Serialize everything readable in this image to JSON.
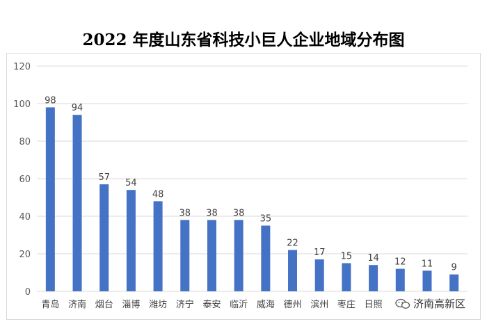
{
  "chart_data": {
    "type": "bar",
    "title": "2022 年度山东省科技小巨人企业地域分布图",
    "categories": [
      "青岛",
      "济南",
      "烟台",
      "淄博",
      "潍坊",
      "济宁",
      "泰安",
      "临沂",
      "威海",
      "德州",
      "滨州",
      "枣庄",
      "日照",
      "",
      "",
      ""
    ],
    "values": [
      98,
      94,
      57,
      54,
      48,
      38,
      38,
      38,
      35,
      22,
      17,
      15,
      14,
      12,
      11,
      9
    ],
    "ylim": [
      0,
      120
    ],
    "yticks": [
      0,
      20,
      40,
      60,
      80,
      100,
      120
    ],
    "grid": true,
    "legend": "none",
    "bar_color": "#4472c4",
    "grid_color": "#d9d9d9"
  },
  "watermark": {
    "text": "济南高新区",
    "icon": "wechat-icon"
  }
}
